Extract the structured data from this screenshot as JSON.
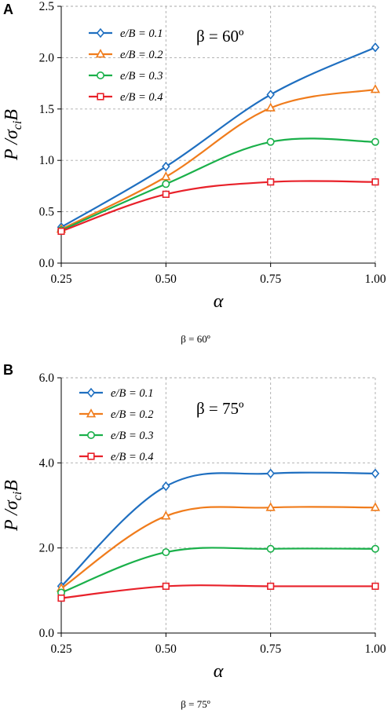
{
  "panels": [
    {
      "letter": "A",
      "caption": "β = 60º",
      "chart_data": {
        "type": "line",
        "annotation": "β = 60º",
        "ylabel": "P /σciB",
        "xlabel": "α",
        "x": [
          0.25,
          0.5,
          0.75,
          1.0
        ],
        "x_tick_labels": [
          "0.25",
          "0.50",
          "0.75",
          "1.00"
        ],
        "xlim": [
          0.25,
          1.0
        ],
        "ylim": [
          0,
          2.5
        ],
        "y_ticks": [
          0,
          0.5,
          1.0,
          1.5,
          2.0,
          2.5
        ],
        "y_tick_labels": [
          "0.0",
          "0.5",
          "1.0",
          "1.5",
          "2.0",
          "2.5"
        ],
        "grid": true,
        "legend_position": "top-left",
        "series": [
          {
            "name": "e/B = 0.1",
            "marker": "diamond",
            "color": "#1f6fc0",
            "values": [
              0.35,
              0.94,
              1.64,
              2.1
            ]
          },
          {
            "name": "e/B = 0.2",
            "marker": "triangle",
            "color": "#f07c1c",
            "values": [
              0.33,
              0.84,
              1.51,
              1.69
            ]
          },
          {
            "name": "e/B = 0.3",
            "marker": "circle",
            "color": "#1ab04a",
            "values": [
              0.32,
              0.77,
              1.18,
              1.18
            ]
          },
          {
            "name": "e/B = 0.4",
            "marker": "square",
            "color": "#e8212a",
            "values": [
              0.31,
              0.67,
              0.79,
              0.79
            ]
          }
        ]
      }
    },
    {
      "letter": "B",
      "caption": "β = 75º",
      "chart_data": {
        "type": "line",
        "annotation": "β = 75º",
        "ylabel": "P /σciB",
        "xlabel": "α",
        "x": [
          0.25,
          0.5,
          0.75,
          1.0
        ],
        "x_tick_labels": [
          "0.25",
          "0.50",
          "0.75",
          "1.00"
        ],
        "xlim": [
          0.25,
          1.0
        ],
        "ylim": [
          0,
          6.0
        ],
        "y_ticks": [
          0,
          2.0,
          4.0,
          6.0
        ],
        "y_tick_labels": [
          "0.0",
          "2.0",
          "4.0",
          "6.0"
        ],
        "grid": true,
        "legend_position": "top-left",
        "series": [
          {
            "name": "e/B = 0.1",
            "marker": "diamond",
            "color": "#1f6fc0",
            "values": [
              1.1,
              3.45,
              3.75,
              3.75
            ]
          },
          {
            "name": "e/B = 0.2",
            "marker": "triangle",
            "color": "#f07c1c",
            "values": [
              1.05,
              2.75,
              2.95,
              2.95
            ]
          },
          {
            "name": "e/B = 0.3",
            "marker": "circle",
            "color": "#1ab04a",
            "values": [
              0.95,
              1.9,
              1.98,
              1.98
            ]
          },
          {
            "name": "e/B = 0.4",
            "marker": "square",
            "color": "#e8212a",
            "values": [
              0.82,
              1.1,
              1.1,
              1.1
            ]
          }
        ]
      }
    }
  ]
}
